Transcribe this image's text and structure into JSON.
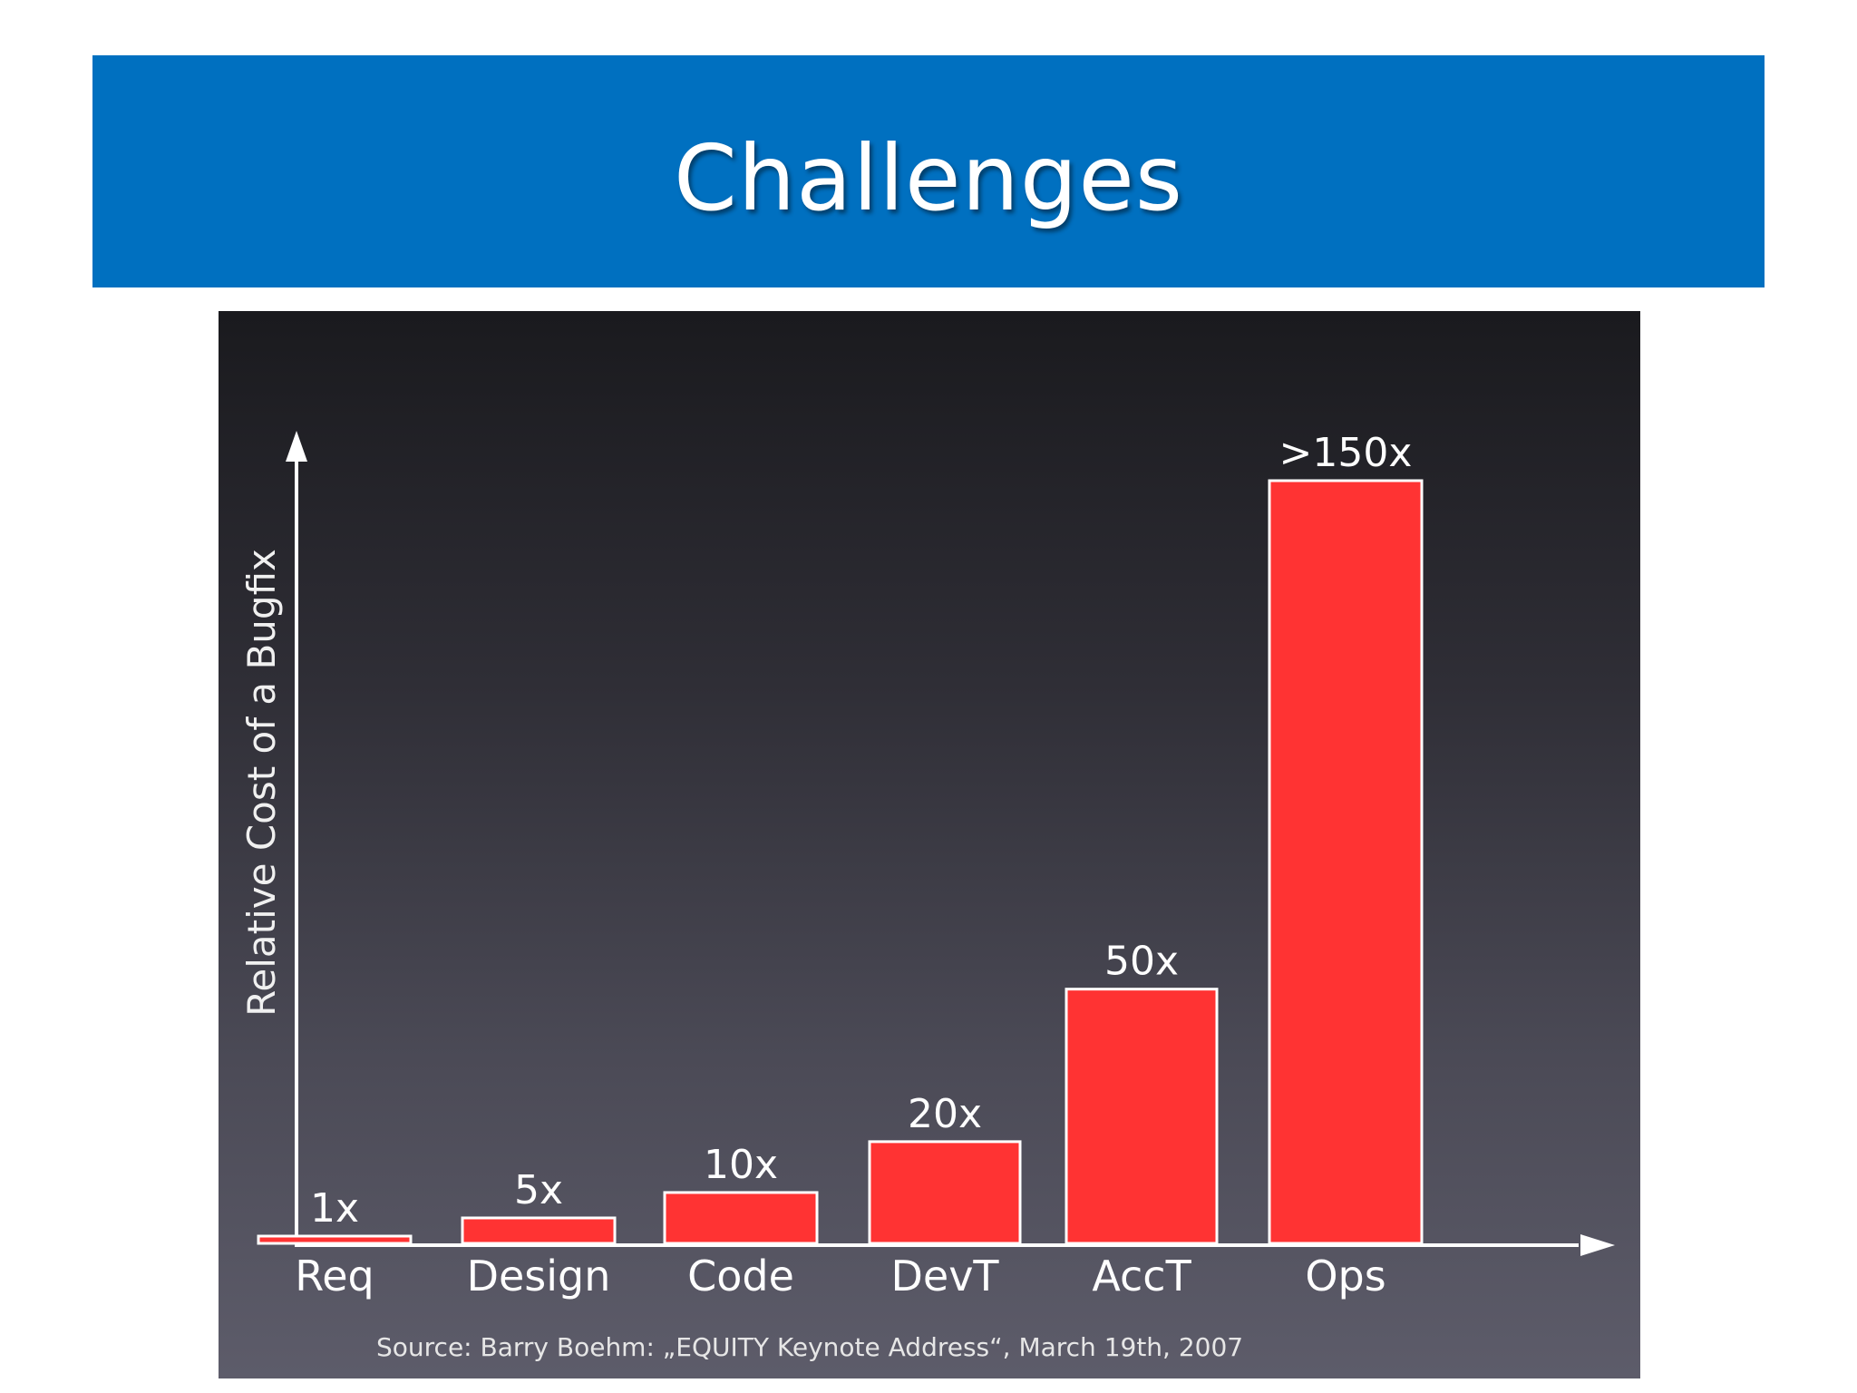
{
  "slide": {
    "title": "Challenges"
  },
  "colors": {
    "title_bar": "#0070c0",
    "bar_fill": "#ff3333",
    "bar_stroke": "#ffffff",
    "axis": "#ffffff"
  },
  "chart_data": {
    "type": "bar",
    "title": "",
    "ylabel": "Relative Cost of a Bugfix",
    "xlabel": "",
    "categories": [
      "Req",
      "Design",
      "Code",
      "DevT",
      "AccT",
      "Ops"
    ],
    "values": [
      1,
      5,
      10,
      20,
      50,
      150
    ],
    "value_labels": [
      "1x",
      "5x",
      "10x",
      "20x",
      "50x",
      ">150x"
    ],
    "ylim": [
      0,
      165
    ],
    "y_ticks_shown": false,
    "grid": false,
    "legend": "none",
    "source": "Source: Barry Boehm: „EQUITY Keynote Address“, March 19th, 2007"
  }
}
